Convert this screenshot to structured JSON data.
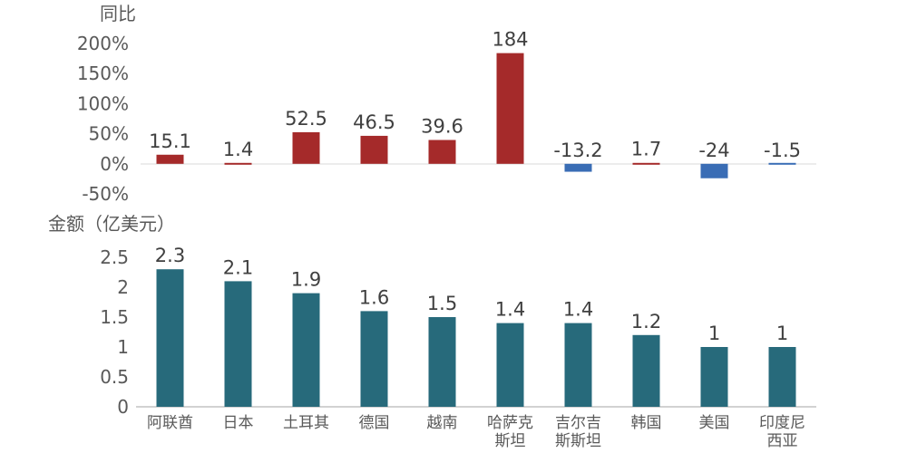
{
  "chart_data": [
    {
      "type": "bar",
      "ylabel": "同比",
      "categories": [
        "阿联酋",
        "日本",
        "土耳其",
        "德国",
        "越南",
        "哈萨克斯坦",
        "吉尔吉斯斯坦",
        "韩国",
        "美国",
        "印度尼西亚"
      ],
      "category_lines": [
        [
          "阿联酋"
        ],
        [
          "日本"
        ],
        [
          "土耳其"
        ],
        [
          "德国"
        ],
        [
          "越南"
        ],
        [
          "哈萨克",
          "斯坦"
        ],
        [
          "吉尔吉",
          "斯斯坦"
        ],
        [
          "韩国"
        ],
        [
          "美国"
        ],
        [
          "印度尼",
          "西亚"
        ]
      ],
      "values": [
        15.1,
        1.4,
        52.5,
        46.5,
        39.6,
        184,
        -13.2,
        1.7,
        -24,
        -1.5
      ],
      "value_labels": [
        "15.1",
        "1.4",
        "52.5",
        "46.5",
        "39.6",
        "184",
        "-13.2",
        "1.7",
        "-24",
        "-1.5"
      ],
      "ylim": [
        -50,
        200
      ],
      "yticks": [
        200,
        150,
        100,
        50,
        0,
        -50
      ],
      "ytick_labels": [
        "200%",
        "150%",
        "100%",
        "50%",
        "0%",
        "-50%"
      ],
      "positive_color": "#a52a2a",
      "negative_color": "#3a6db5",
      "grid": false
    },
    {
      "type": "bar",
      "ylabel": "金额（亿美元）",
      "categories": [
        "阿联酋",
        "日本",
        "土耳其",
        "德国",
        "越南",
        "哈萨克斯坦",
        "吉尔吉斯斯坦",
        "韩国",
        "美国",
        "印度尼西亚"
      ],
      "category_lines": [
        [
          "阿联酋"
        ],
        [
          "日本"
        ],
        [
          "土耳其"
        ],
        [
          "德国"
        ],
        [
          "越南"
        ],
        [
          "哈萨克",
          "斯坦"
        ],
        [
          "吉尔吉",
          "斯斯坦"
        ],
        [
          "韩国"
        ],
        [
          "美国"
        ],
        [
          "印度尼",
          "西亚"
        ]
      ],
      "values": [
        2.3,
        2.1,
        1.9,
        1.6,
        1.5,
        1.4,
        1.4,
        1.2,
        1,
        1
      ],
      "value_labels": [
        "2.3",
        "2.1",
        "1.9",
        "1.6",
        "1.5",
        "1.4",
        "1.4",
        "1.2",
        "1",
        "1"
      ],
      "ylim": [
        0,
        2.5
      ],
      "yticks": [
        2.5,
        2,
        1.5,
        1,
        0.5,
        0
      ],
      "ytick_labels": [
        "2.5",
        "2",
        "1.5",
        "1",
        "0.5",
        "0"
      ],
      "bar_color": "#276a7b",
      "grid": false
    }
  ]
}
